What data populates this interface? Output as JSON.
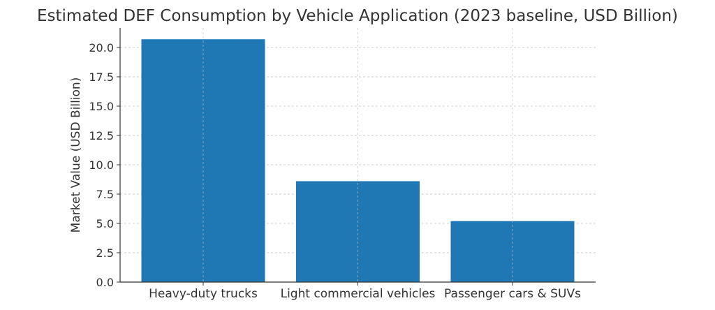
{
  "chart_data": {
    "type": "bar",
    "title": "Estimated DEF Consumption by Vehicle Application (2023 baseline, USD Billion)",
    "xlabel": "",
    "ylabel": "Market Value (USD Billion)",
    "categories": [
      "Heavy-duty trucks",
      "Light commercial vehicles",
      "Passenger cars & SUVs"
    ],
    "values": [
      20.7,
      8.6,
      5.2
    ],
    "ylim": [
      0,
      21.7
    ],
    "yticks": [
      "0.0",
      "2.5",
      "5.0",
      "7.5",
      "10.0",
      "12.5",
      "15.0",
      "17.5",
      "20.0"
    ],
    "grid": true,
    "bar_color": "#1f77b4"
  }
}
